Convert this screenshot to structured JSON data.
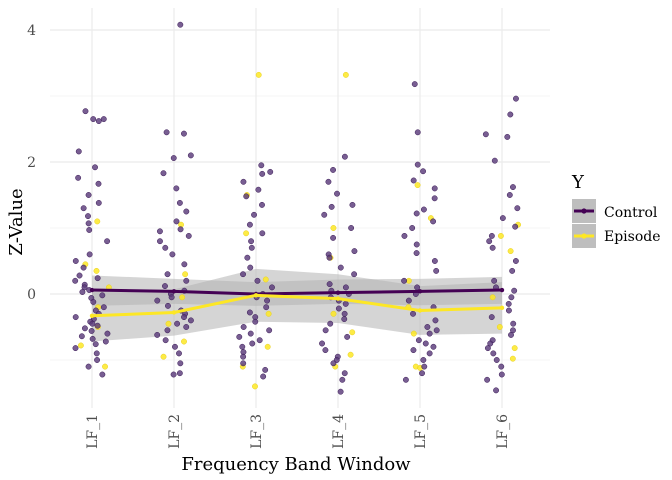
{
  "chart_data": {
    "type": "scatter",
    "xlabel": "Frequency Band Window",
    "ylabel": "Z-Value",
    "categories": [
      "LF_1",
      "LF_2",
      "LF_3",
      "LF_4",
      "LF_5",
      "LF_6"
    ],
    "yticks": [
      0,
      2,
      4
    ],
    "ylim": [
      -1.75,
      4.3
    ],
    "grid": true,
    "legend": {
      "title": "Y",
      "position": "right",
      "entries": [
        "Control",
        "Episode"
      ]
    },
    "colors": {
      "Control": "#440154",
      "Episode": "#FDE725",
      "Control_points": "#5A3A7A",
      "ribbon": "#B3B3B3",
      "grid": "#EBEBEB"
    },
    "series": [
      {
        "name": "Control",
        "mean": [
          0.06,
          0.04,
          0.0,
          0.02,
          0.04,
          0.06
        ],
        "ci_low": [
          -0.18,
          -0.15,
          -0.18,
          -0.15,
          -0.17,
          -0.15
        ],
        "ci_high": [
          0.28,
          0.23,
          0.18,
          0.22,
          0.23,
          0.26
        ],
        "points": [
          [
            2.77,
            2.65,
            2.65,
            2.62,
            2.16,
            1.92,
            1.76,
            1.67,
            1.5,
            1.38,
            1.3,
            1.18,
            1.07,
            0.97,
            0.8,
            0.6,
            0.5,
            0.4,
            0.28,
            0.24,
            0.2,
            0.14,
            0.1,
            0.06,
            0.03,
            -0.02,
            -0.06,
            -0.12,
            -0.2,
            -0.25,
            -0.3,
            -0.35,
            -0.38,
            -0.42,
            -0.45,
            -0.48,
            -0.52,
            -0.56,
            -0.6,
            -0.64,
            -0.68,
            -0.72,
            -0.76,
            -0.82,
            -0.9,
            -1.0,
            -1.1,
            -1.22
          ],
          [
            4.08,
            2.45,
            2.43,
            2.1,
            2.06,
            1.83,
            1.6,
            1.38,
            1.25,
            1.1,
            0.98,
            0.95,
            0.88,
            0.8,
            0.7,
            0.6,
            0.45,
            0.3,
            0.2,
            0.12,
            0.05,
            0.0,
            -0.05,
            -0.1,
            -0.18,
            -0.25,
            -0.3,
            -0.35,
            -0.4,
            -0.45,
            -0.5,
            -0.55,
            -0.62,
            -0.7,
            -0.8,
            -0.9,
            -1.05,
            -1.2,
            -1.22
          ],
          [
            1.95,
            1.85,
            1.82,
            1.7,
            1.58,
            1.48,
            1.35,
            1.2,
            1.05,
            0.92,
            0.8,
            0.7,
            0.55,
            0.4,
            0.3,
            0.2,
            0.1,
            0.0,
            -0.05,
            -0.1,
            -0.2,
            -0.28,
            -0.35,
            -0.42,
            -0.5,
            -0.55,
            -0.6,
            -0.65,
            -0.7,
            -0.75,
            -0.8,
            -0.88,
            -0.95,
            -1.05,
            -1.15,
            -1.25
          ],
          [
            2.08,
            1.88,
            1.7,
            1.52,
            1.35,
            1.32,
            1.2,
            1.0,
            0.85,
            0.65,
            0.6,
            0.55,
            0.4,
            0.3,
            0.15,
            0.1,
            0.05,
            0.0,
            -0.05,
            -0.1,
            -0.15,
            -0.22,
            -0.3,
            -0.38,
            -0.45,
            -0.55,
            -0.65,
            -0.75,
            -0.85,
            -0.95,
            -1.0,
            -1.05,
            -1.2,
            -1.3,
            -1.48
          ],
          [
            3.18,
            2.45,
            1.96,
            1.86,
            1.72,
            1.6,
            1.45,
            1.28,
            1.22,
            1.1,
            1.0,
            0.88,
            0.75,
            0.62,
            0.5,
            0.35,
            0.2,
            0.1,
            0.0,
            -0.1,
            -0.2,
            -0.3,
            -0.4,
            -0.5,
            -0.55,
            -0.6,
            -0.7,
            -0.75,
            -0.8,
            -0.85,
            -0.9,
            -1.0,
            -1.1,
            -1.2,
            -1.3
          ],
          [
            2.96,
            2.72,
            2.42,
            2.38,
            2.02,
            1.62,
            1.5,
            1.3,
            1.15,
            1.02,
            0.88,
            0.8,
            0.7,
            0.5,
            0.35,
            0.2,
            0.1,
            0.05,
            -0.05,
            -0.15,
            -0.25,
            -0.35,
            -0.45,
            -0.55,
            -0.62,
            -0.7,
            -0.75,
            -0.82,
            -0.9,
            -1.0,
            -1.1,
            -1.22,
            -1.3,
            -1.46
          ]
        ]
      },
      {
        "name": "Episode",
        "mean": [
          -0.33,
          -0.28,
          -0.02,
          -0.07,
          -0.25,
          -0.21
        ],
        "ci_low": [
          -0.72,
          -0.63,
          -0.42,
          -0.44,
          -0.62,
          -0.6
        ],
        "ci_high": [
          0.06,
          0.07,
          0.38,
          0.3,
          0.12,
          0.18
        ],
        "points": [
          [
            1.1,
            0.45,
            0.35,
            0.1,
            -0.2,
            -0.5,
            -0.78,
            -1.1
          ],
          [
            1.05,
            0.3,
            -0.05,
            -0.45,
            -0.72,
            -0.95
          ],
          [
            3.32,
            1.5,
            0.92,
            0.22,
            -0.3,
            -0.8,
            -1.1,
            -1.4
          ],
          [
            3.32,
            1.0,
            0.55,
            -0.3,
            -0.58,
            -0.92,
            -1.1
          ],
          [
            1.65,
            1.15,
            0.2,
            -0.2,
            -0.6,
            -1.1,
            -1.12
          ],
          [
            1.05,
            0.88,
            0.65,
            -0.05,
            -0.5,
            -0.82,
            -0.98
          ]
        ]
      }
    ]
  }
}
